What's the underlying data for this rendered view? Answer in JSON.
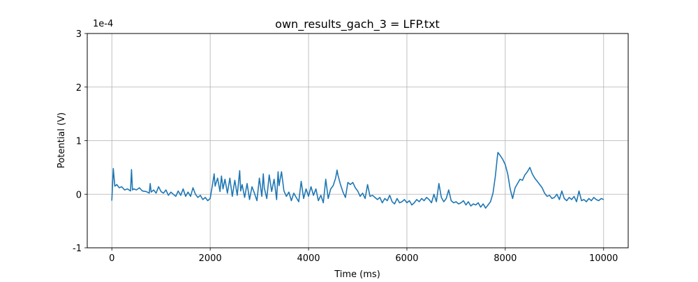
{
  "chart_data": {
    "type": "line",
    "title": "own_results_gach_3 = LFP.txt",
    "xlabel": "Time (ms)",
    "ylabel": "Potential (V)",
    "y_scale_label": "1e-4",
    "xlim": [
      -500,
      10500
    ],
    "ylim": [
      -1,
      3
    ],
    "x_ticks": [
      0,
      2000,
      4000,
      6000,
      8000,
      10000
    ],
    "y_ticks": [
      -1,
      0,
      1,
      2,
      3
    ],
    "x_tick_labels": [
      "0",
      "2000",
      "4000",
      "6000",
      "8000",
      "10000"
    ],
    "y_tick_labels": [
      "-1",
      "0",
      "1",
      "2",
      "3"
    ],
    "grid": true,
    "line_color": "#1f77b4",
    "series": [
      {
        "x": [
          0,
          30,
          60,
          100,
          150,
          200,
          260,
          320,
          380,
          400,
          420,
          450,
          500,
          560,
          620,
          700,
          760,
          780,
          800,
          850,
          900,
          950,
          1000,
          1050,
          1100,
          1150,
          1200,
          1250,
          1300,
          1350,
          1400,
          1450,
          1500,
          1550,
          1600,
          1650,
          1700,
          1750,
          1800,
          1850,
          1900,
          1950,
          2000,
          2050,
          2080,
          2100,
          2150,
          2200,
          2230,
          2260,
          2300,
          2350,
          2400,
          2450,
          2500,
          2550,
          2600,
          2620,
          2650,
          2700,
          2750,
          2800,
          2850,
          2900,
          2950,
          3000,
          3050,
          3080,
          3100,
          3150,
          3200,
          3250,
          3300,
          3350,
          3380,
          3400,
          3450,
          3500,
          3550,
          3600,
          3650,
          3700,
          3750,
          3800,
          3850,
          3900,
          3950,
          4000,
          4050,
          4100,
          4150,
          4200,
          4250,
          4300,
          4350,
          4400,
          4450,
          4500,
          4550,
          4580,
          4600,
          4650,
          4700,
          4750,
          4800,
          4850,
          4900,
          4950,
          5000,
          5050,
          5100,
          5150,
          5200,
          5250,
          5300,
          5350,
          5400,
          5450,
          5500,
          5550,
          5600,
          5650,
          5700,
          5750,
          5800,
          5850,
          5900,
          5950,
          6000,
          6050,
          6100,
          6150,
          6200,
          6250,
          6300,
          6350,
          6400,
          6450,
          6500,
          6550,
          6600,
          6650,
          6700,
          6750,
          6800,
          6850,
          6900,
          6950,
          7000,
          7050,
          7100,
          7150,
          7200,
          7250,
          7300,
          7350,
          7400,
          7450,
          7500,
          7550,
          7600,
          7650,
          7700,
          7750,
          7800,
          7830,
          7850,
          7900,
          7950,
          8000,
          8050,
          8100,
          8150,
          8200,
          8250,
          8300,
          8350,
          8400,
          8450,
          8500,
          8550,
          8600,
          8650,
          8700,
          8750,
          8800,
          8850,
          8900,
          8950,
          9000,
          9050,
          9100,
          9150,
          9200,
          9250,
          9300,
          9350,
          9400,
          9450,
          9500,
          9550,
          9600,
          9650,
          9700,
          9750,
          9800,
          9850,
          9900,
          9950,
          10000
        ],
        "y": [
          -0.12,
          0.48,
          0.15,
          0.18,
          0.12,
          0.14,
          0.08,
          0.1,
          0.06,
          0.46,
          0.08,
          0.1,
          0.08,
          0.12,
          0.06,
          0.05,
          0.02,
          0.2,
          0.04,
          0.08,
          0.02,
          0.14,
          0.05,
          0.02,
          0.08,
          -0.02,
          0.04,
          0.0,
          -0.04,
          0.06,
          -0.02,
          0.1,
          -0.04,
          0.04,
          -0.04,
          0.12,
          0.0,
          -0.06,
          -0.02,
          -0.1,
          -0.06,
          -0.12,
          -0.08,
          0.2,
          0.38,
          0.15,
          0.3,
          0.05,
          0.34,
          0.1,
          0.28,
          0.02,
          0.3,
          -0.04,
          0.26,
          -0.02,
          0.44,
          0.06,
          0.18,
          -0.06,
          0.2,
          -0.1,
          0.14,
          0.02,
          -0.12,
          0.3,
          -0.04,
          0.38,
          0.12,
          -0.08,
          0.36,
          0.05,
          0.28,
          -0.1,
          0.42,
          0.16,
          0.42,
          0.06,
          -0.04,
          0.04,
          -0.12,
          0.02,
          -0.06,
          -0.14,
          0.24,
          -0.08,
          0.1,
          -0.04,
          0.14,
          -0.02,
          0.1,
          -0.12,
          -0.02,
          -0.16,
          0.28,
          -0.08,
          0.1,
          0.16,
          0.3,
          0.45,
          0.35,
          0.18,
          0.04,
          -0.06,
          0.22,
          0.18,
          0.22,
          0.12,
          0.06,
          -0.04,
          0.02,
          -0.08,
          0.18,
          -0.04,
          -0.02,
          -0.06,
          -0.1,
          -0.06,
          -0.16,
          -0.08,
          -0.12,
          -0.02,
          -0.14,
          -0.18,
          -0.08,
          -0.16,
          -0.14,
          -0.1,
          -0.16,
          -0.12,
          -0.2,
          -0.16,
          -0.1,
          -0.14,
          -0.08,
          -0.12,
          -0.06,
          -0.1,
          -0.16,
          0.0,
          -0.14,
          0.2,
          -0.06,
          -0.14,
          -0.08,
          0.08,
          -0.12,
          -0.16,
          -0.14,
          -0.18,
          -0.16,
          -0.12,
          -0.2,
          -0.14,
          -0.22,
          -0.18,
          -0.2,
          -0.16,
          -0.24,
          -0.18,
          -0.26,
          -0.2,
          -0.14,
          0.02,
          0.35,
          0.62,
          0.78,
          0.72,
          0.65,
          0.55,
          0.38,
          0.1,
          -0.08,
          0.12,
          0.2,
          0.28,
          0.26,
          0.36,
          0.42,
          0.5,
          0.38,
          0.3,
          0.24,
          0.18,
          0.12,
          0.02,
          -0.04,
          -0.02,
          -0.08,
          -0.06,
          0.0,
          -0.1,
          0.06,
          -0.08,
          -0.12,
          -0.06,
          -0.1,
          -0.04,
          -0.14,
          0.06,
          -0.12,
          -0.1,
          -0.14,
          -0.08,
          -0.12,
          -0.06,
          -0.1,
          -0.12,
          -0.08,
          -0.1
        ]
      }
    ]
  }
}
